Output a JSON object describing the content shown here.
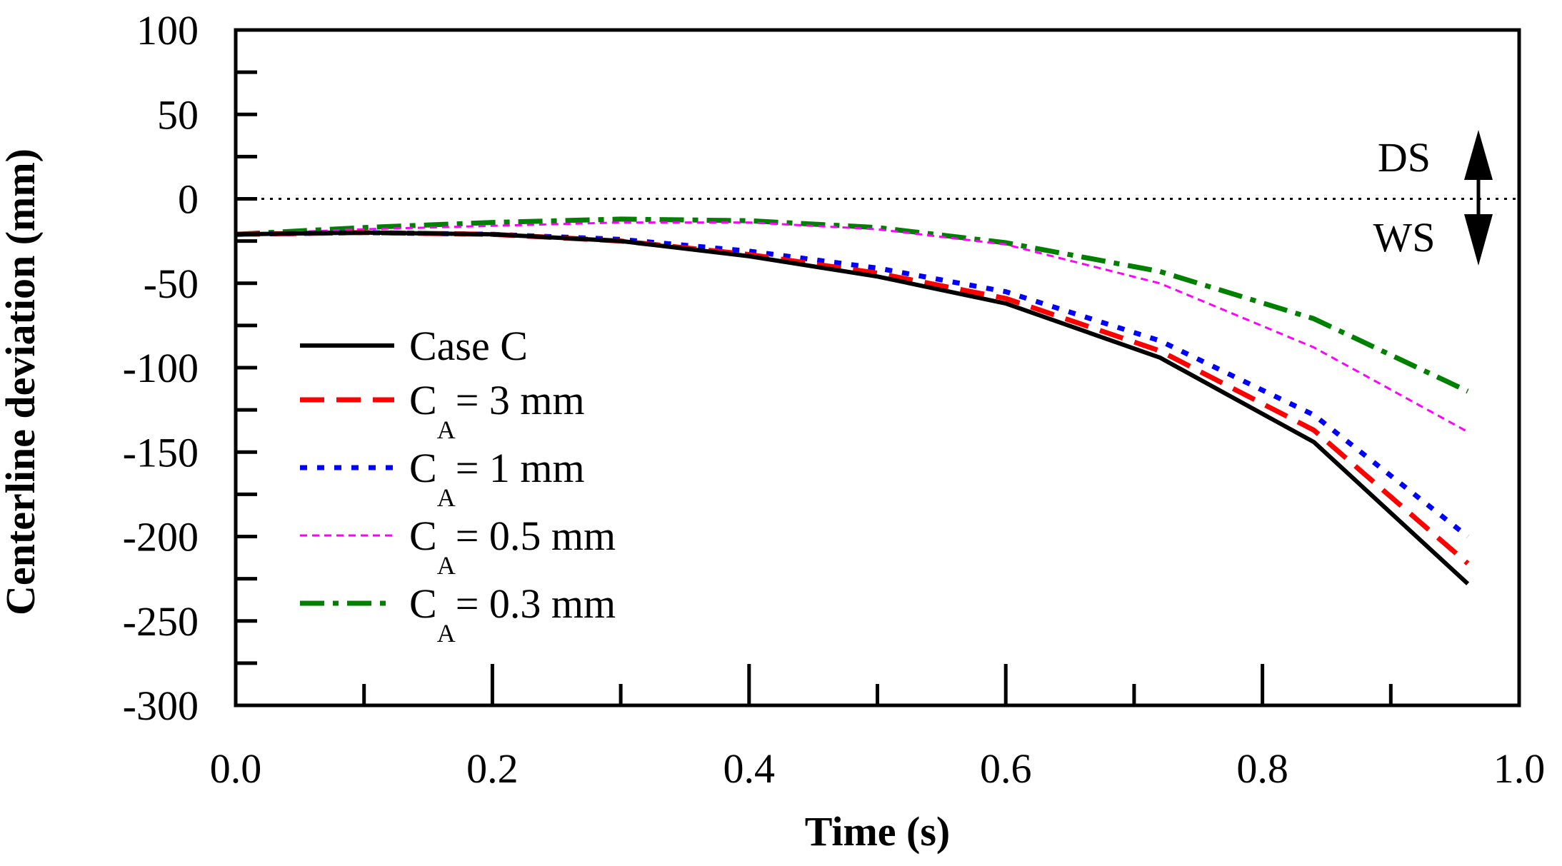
{
  "chart_data": {
    "type": "line",
    "xlabel": "Time (s)",
    "ylabel": "Centerline deviation (mm)",
    "xlim": [
      0.0,
      1.0
    ],
    "ylim": [
      -300,
      100
    ],
    "xticks": [
      "0.0",
      "0.2",
      "0.4",
      "0.6",
      "0.8",
      "1.0"
    ],
    "yticks": [
      "100",
      "50",
      "0",
      "-50",
      "-100",
      "-150",
      "-200",
      "-250",
      "-300"
    ],
    "reference_line": {
      "y": 0,
      "style": "dotted"
    },
    "annotations": {
      "top": "DS",
      "bottom": "WS"
    },
    "legend_position": "left-middle",
    "series": [
      {
        "name": "Case C",
        "legend_main": "Case C",
        "legend_sub": "",
        "legend_tail": "",
        "color": "#000000",
        "style": "solid",
        "x": [
          0.0,
          0.1,
          0.2,
          0.3,
          0.4,
          0.5,
          0.6,
          0.72,
          0.84,
          0.96
        ],
        "y": [
          -21,
          -20,
          -21,
          -25,
          -34,
          -46,
          -62,
          -94,
          -144,
          -228
        ]
      },
      {
        "name": "CA = 3 mm",
        "legend_main": "C",
        "legend_sub": "A",
        "legend_tail": "= 3 mm",
        "color": "#ff0000",
        "style": "dash",
        "x": [
          0.0,
          0.1,
          0.2,
          0.3,
          0.4,
          0.5,
          0.6,
          0.72,
          0.84,
          0.96
        ],
        "y": [
          -21,
          -20,
          -21,
          -25,
          -33,
          -44,
          -59,
          -90,
          -137,
          -216
        ]
      },
      {
        "name": "CA = 1 mm",
        "legend_main": "C",
        "legend_sub": "A",
        "legend_tail": "= 1 mm",
        "color": "#0000ff",
        "style": "dot",
        "x": [
          0.0,
          0.1,
          0.2,
          0.3,
          0.4,
          0.5,
          0.6,
          0.72,
          0.84,
          0.96
        ],
        "y": [
          -21,
          -20,
          -21,
          -24,
          -31,
          -41,
          -55,
          -84,
          -128,
          -200
        ]
      },
      {
        "name": "CA = 0.5 mm",
        "legend_main": "C",
        "legend_sub": "A",
        "legend_tail": "= 0.5 mm",
        "color": "#ff00ff",
        "style": "shortdash",
        "x": [
          0.0,
          0.1,
          0.2,
          0.3,
          0.4,
          0.5,
          0.6,
          0.72,
          0.84,
          0.96
        ],
        "y": [
          -21,
          -18,
          -16,
          -14,
          -14,
          -18,
          -27,
          -50,
          -88,
          -138
        ]
      },
      {
        "name": "CA = 0.3 mm",
        "legend_main": "C",
        "legend_sub": "A",
        "legend_tail": "= 0.3 mm",
        "color": "#008000",
        "style": "dashdot",
        "x": [
          0.0,
          0.1,
          0.2,
          0.3,
          0.4,
          0.5,
          0.6,
          0.72,
          0.84,
          0.96
        ],
        "y": [
          -21,
          -17,
          -14,
          -12,
          -13,
          -17,
          -26,
          -43,
          -71,
          -114
        ]
      }
    ]
  }
}
